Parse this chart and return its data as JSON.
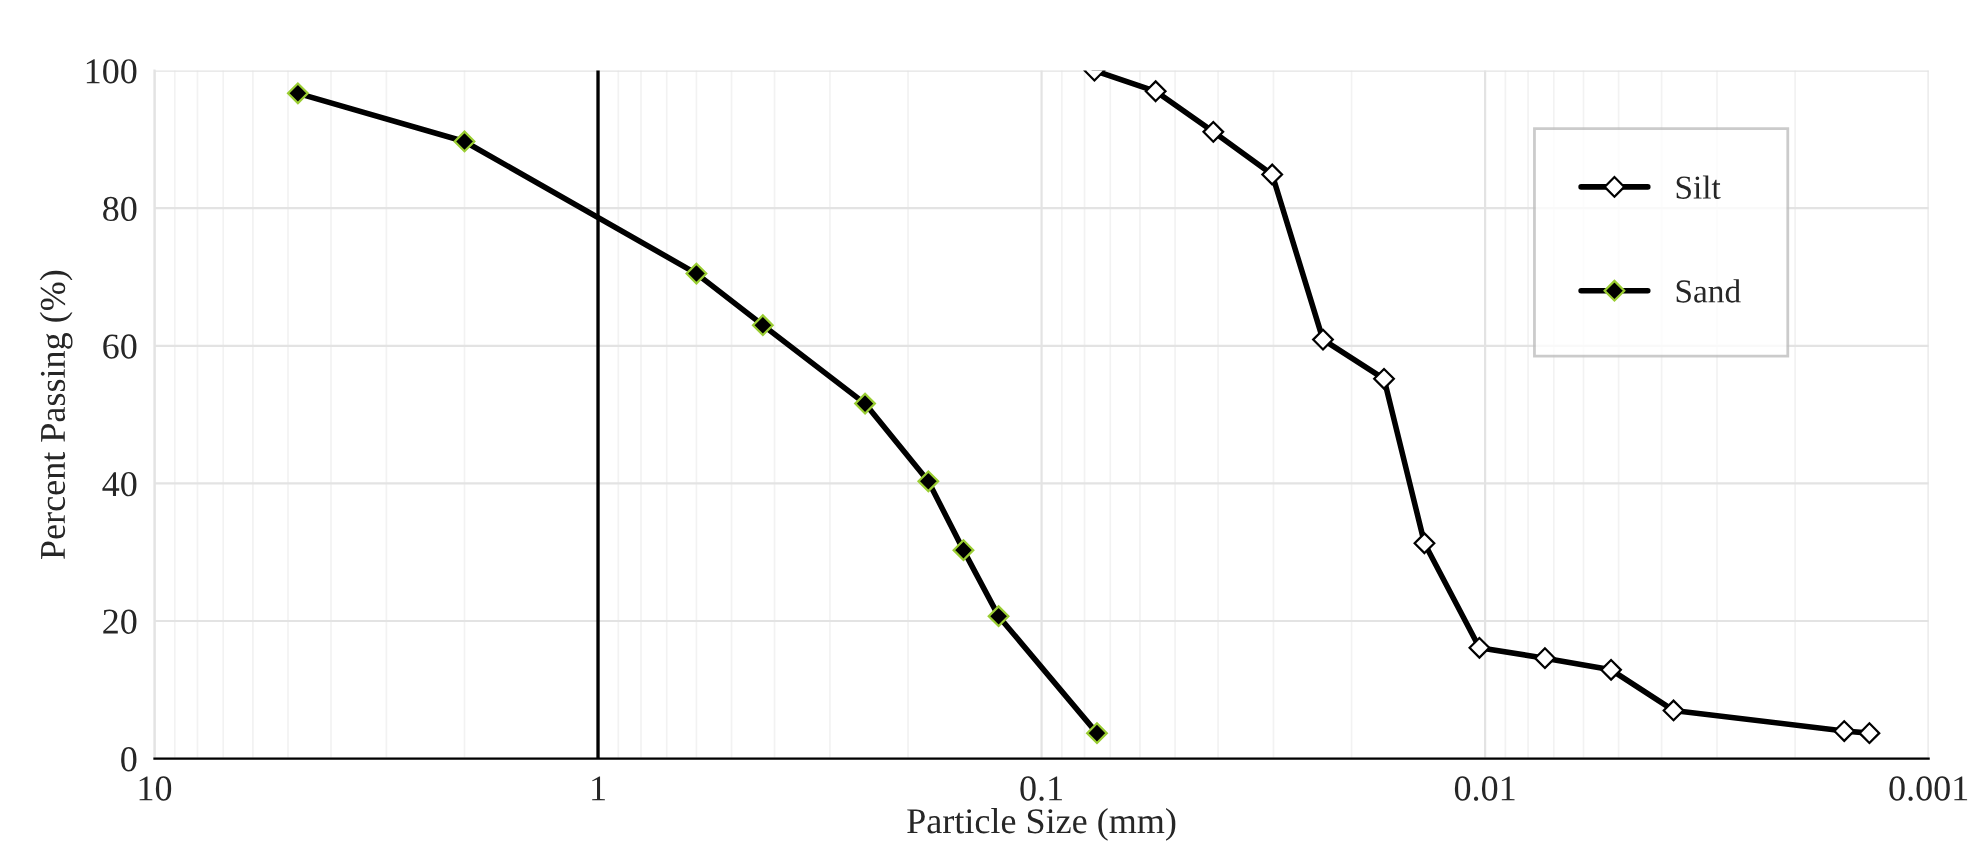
{
  "chart_data": {
    "type": "line",
    "xlabel": "Particle Size (mm)",
    "ylabel": "Percent Passing (%)",
    "log": "x",
    "xlim": [
      10,
      0.001
    ],
    "xticks": [
      10,
      1,
      0.1,
      0.01,
      0.001
    ],
    "ylim": [
      0,
      100
    ],
    "yticks": [
      0,
      20,
      40,
      60,
      80,
      100
    ],
    "grid": true,
    "legend": "top right",
    "marker": "diamond",
    "line_style": "solid",
    "ref_lines": [
      {
        "axis": "x",
        "value": 1,
        "color": "#000000"
      }
    ],
    "series": [
      {
        "name": "Silt",
        "color": "#000000",
        "x": [
          0.076,
          0.0553,
          0.041,
          0.0302,
          0.0232,
          0.0169,
          0.0137,
          0.0103,
          0.00733,
          0.0052,
          0.00376,
          0.00155,
          0.00136
        ],
        "values": [
          100,
          97.0,
          91.1,
          84.9,
          60.9,
          55.2,
          31.3,
          16.1,
          14.6,
          12.9,
          7.0,
          4.0,
          3.7
        ]
      },
      {
        "name": "Sand",
        "color": "#000000",
        "x": [
          4.75,
          2.0,
          0.6,
          0.425,
          0.25,
          0.18,
          0.15,
          0.125,
          0.075
        ],
        "values": [
          96.7,
          89.7,
          70.5,
          63.0,
          51.6,
          40.3,
          30.3,
          20.7,
          3.7
        ]
      }
    ]
  }
}
